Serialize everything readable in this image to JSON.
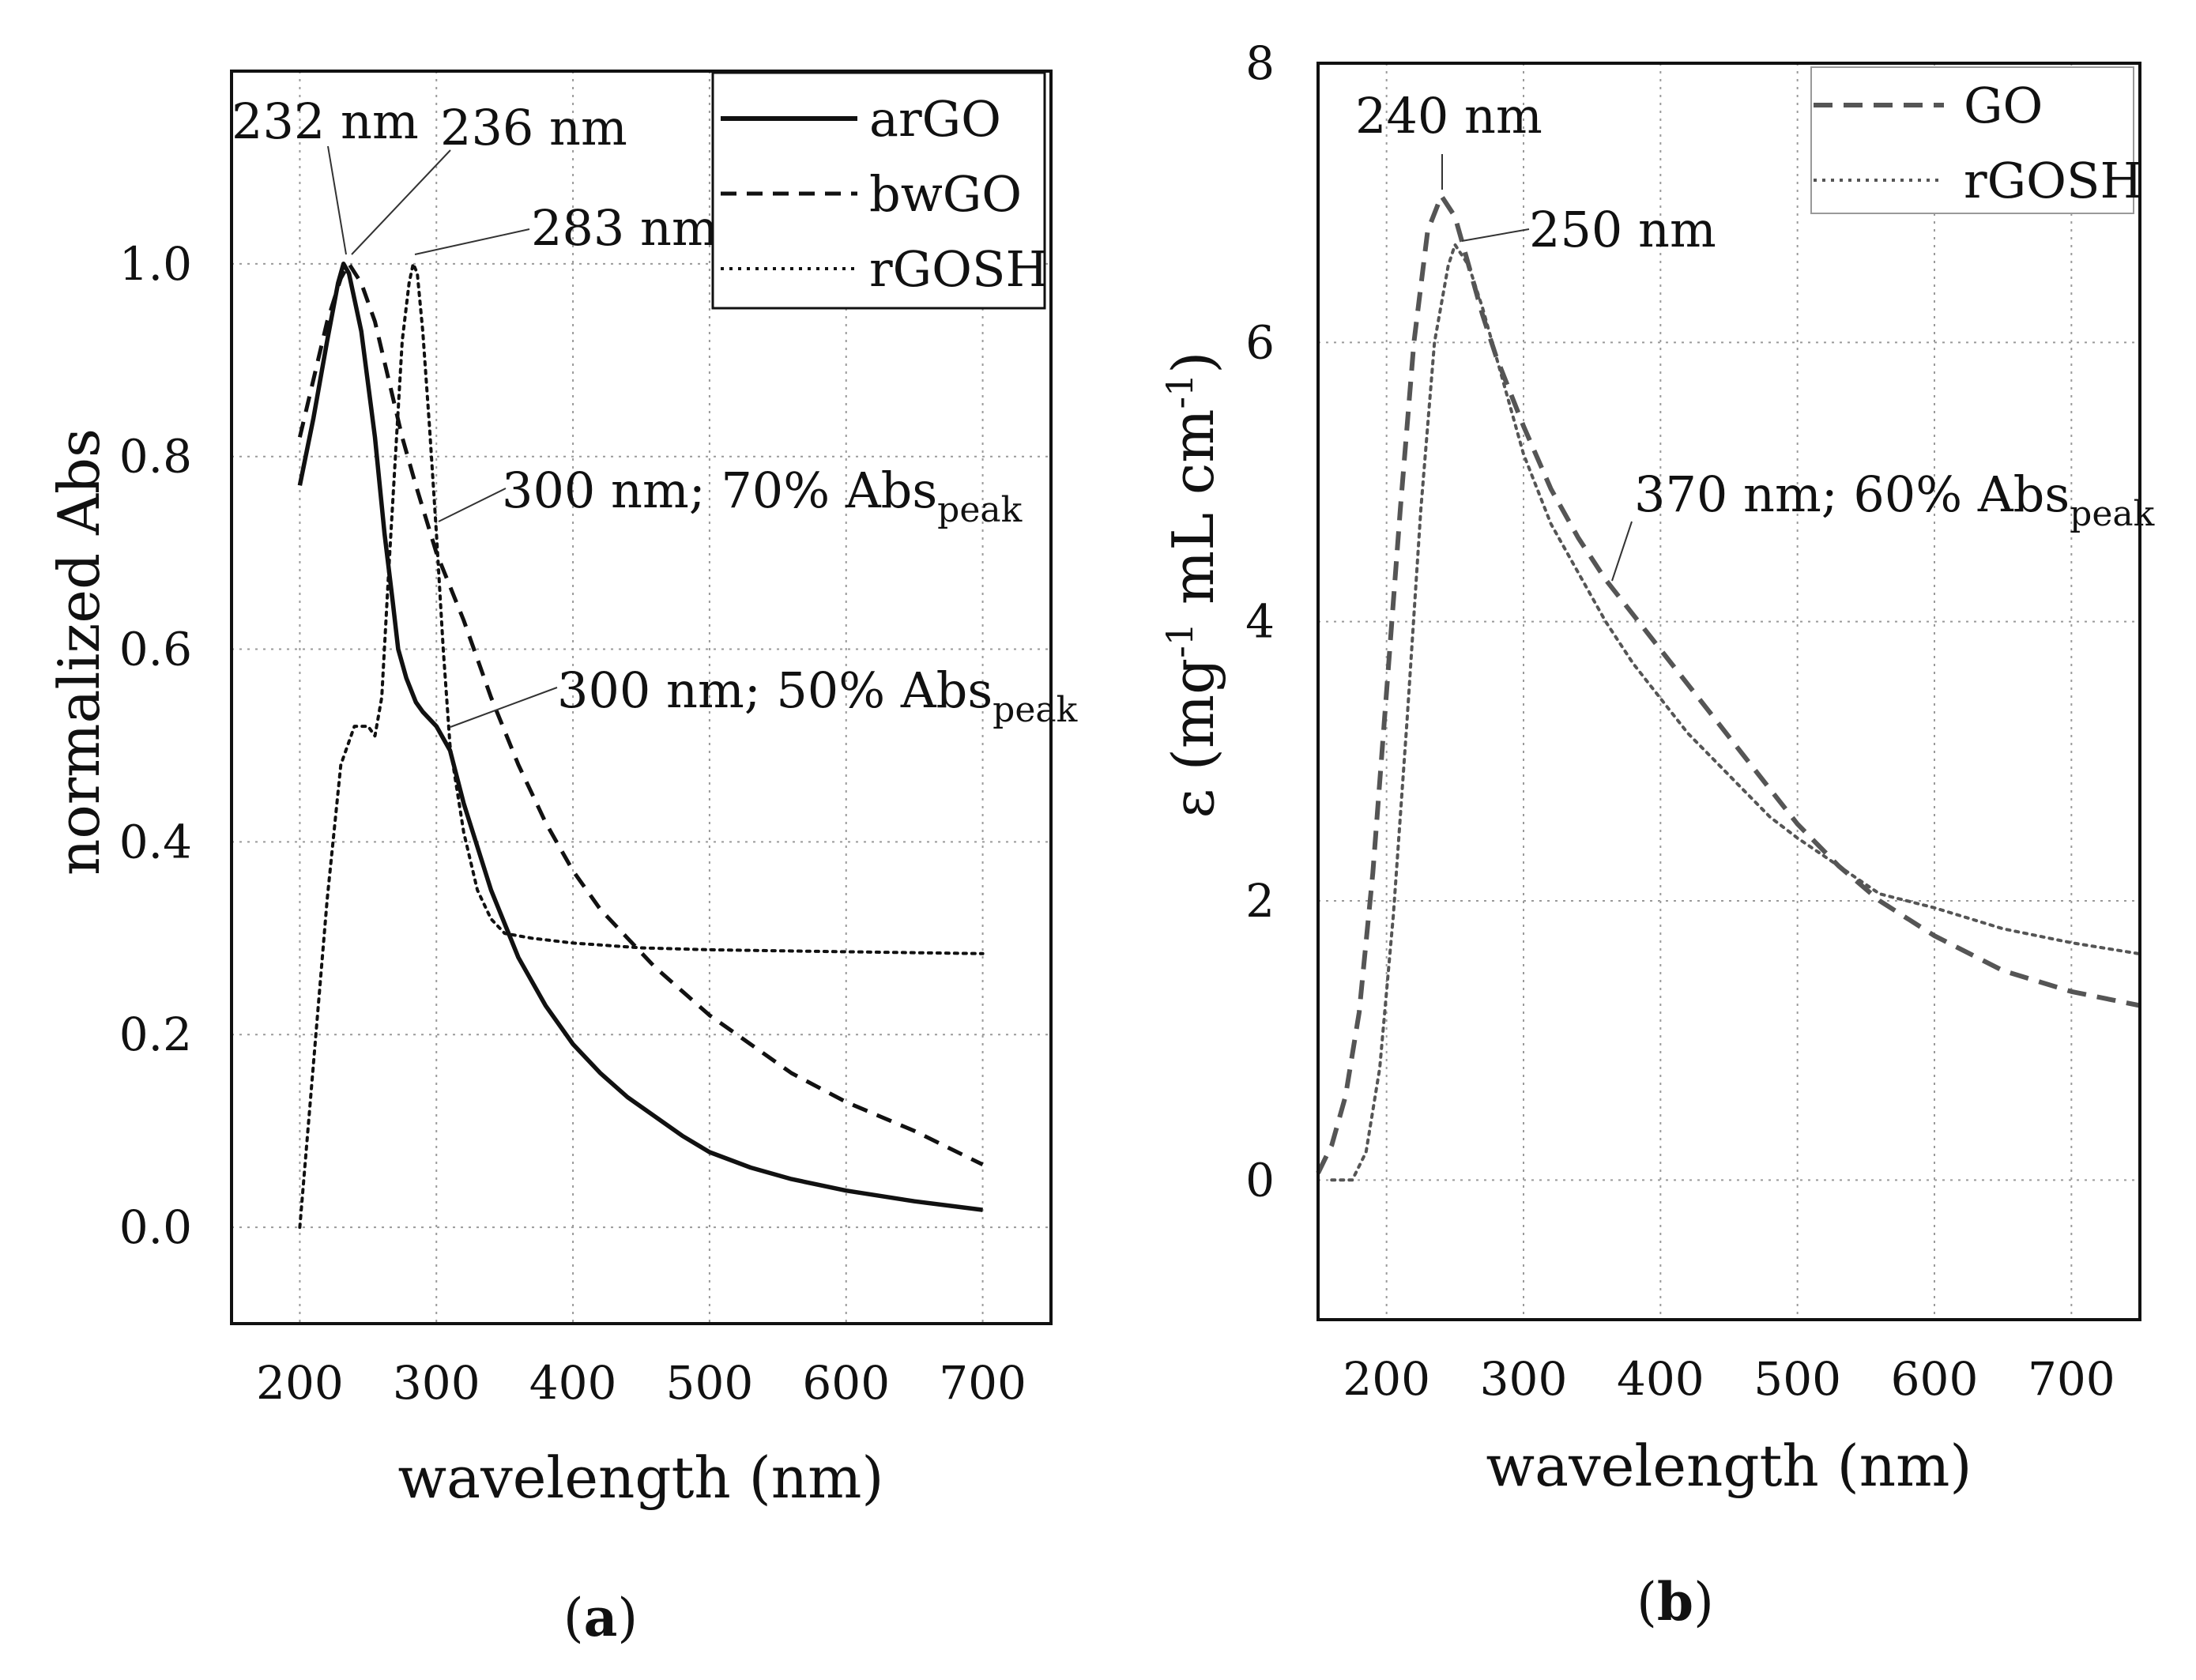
{
  "chart_data": [
    {
      "panel": "a",
      "type": "line",
      "panel_label": "a",
      "xlabel": "wavelength (nm)",
      "ylabel": "normalized Abs",
      "xlim": [
        150,
        750
      ],
      "ylim": [
        -0.1,
        1.2
      ],
      "xticks": [
        200,
        300,
        400,
        500,
        600,
        700
      ],
      "xtick_labels": [
        "200",
        "300",
        "400",
        "500",
        "600",
        "700"
      ],
      "yticks": [
        0.0,
        0.2,
        0.4,
        0.6,
        0.8,
        1.0
      ],
      "ytick_labels": [
        "0.0",
        "0.2",
        "0.4",
        "0.6",
        "0.8",
        "1.0"
      ],
      "grid": true,
      "legend_position": "top-right",
      "series": [
        {
          "name": "arGO",
          "style": "solid",
          "color": "#111111",
          "points": [
            [
              200,
              0.77
            ],
            [
              210,
              0.84
            ],
            [
              220,
              0.92
            ],
            [
              228,
              0.98
            ],
            [
              232,
              1.0
            ],
            [
              236,
              0.99
            ],
            [
              245,
              0.93
            ],
            [
              255,
              0.82
            ],
            [
              262,
              0.72
            ],
            [
              268,
              0.65
            ],
            [
              272,
              0.6
            ],
            [
              278,
              0.57
            ],
            [
              285,
              0.545
            ],
            [
              290,
              0.535
            ],
            [
              300,
              0.52
            ],
            [
              310,
              0.495
            ],
            [
              320,
              0.44
            ],
            [
              340,
              0.35
            ],
            [
              360,
              0.28
            ],
            [
              380,
              0.23
            ],
            [
              400,
              0.19
            ],
            [
              420,
              0.16
            ],
            [
              440,
              0.135
            ],
            [
              460,
              0.115
            ],
            [
              480,
              0.095
            ],
            [
              500,
              0.078
            ],
            [
              530,
              0.062
            ],
            [
              560,
              0.05
            ],
            [
              600,
              0.038
            ],
            [
              650,
              0.027
            ],
            [
              700,
              0.018
            ]
          ]
        },
        {
          "name": "bwGO",
          "style": "dashed",
          "color": "#111111",
          "points": [
            [
              200,
              0.82
            ],
            [
              210,
              0.88
            ],
            [
              220,
              0.94
            ],
            [
              230,
              0.985
            ],
            [
              236,
              1.0
            ],
            [
              245,
              0.98
            ],
            [
              255,
              0.94
            ],
            [
              265,
              0.88
            ],
            [
              275,
              0.82
            ],
            [
              285,
              0.77
            ],
            [
              300,
              0.7
            ],
            [
              320,
              0.63
            ],
            [
              340,
              0.55
            ],
            [
              360,
              0.48
            ],
            [
              380,
              0.42
            ],
            [
              400,
              0.37
            ],
            [
              420,
              0.33
            ],
            [
              440,
              0.3
            ],
            [
              460,
              0.27
            ],
            [
              480,
              0.245
            ],
            [
              500,
              0.22
            ],
            [
              530,
              0.19
            ],
            [
              560,
              0.16
            ],
            [
              600,
              0.13
            ],
            [
              650,
              0.1
            ],
            [
              700,
              0.065
            ]
          ]
        },
        {
          "name": "rGOSH",
          "style": "dotted",
          "color": "#111111",
          "points": [
            [
              200,
              0.0
            ],
            [
              210,
              0.17
            ],
            [
              220,
              0.34
            ],
            [
              230,
              0.48
            ],
            [
              240,
              0.52
            ],
            [
              250,
              0.52
            ],
            [
              255,
              0.51
            ],
            [
              260,
              0.55
            ],
            [
              265,
              0.68
            ],
            [
              270,
              0.8
            ],
            [
              275,
              0.92
            ],
            [
              280,
              0.98
            ],
            [
              283,
              1.0
            ],
            [
              286,
              0.99
            ],
            [
              290,
              0.93
            ],
            [
              295,
              0.83
            ],
            [
              300,
              0.72
            ],
            [
              305,
              0.6
            ],
            [
              310,
              0.5
            ],
            [
              320,
              0.41
            ],
            [
              330,
              0.35
            ],
            [
              340,
              0.32
            ],
            [
              350,
              0.305
            ],
            [
              370,
              0.3
            ],
            [
              400,
              0.295
            ],
            [
              450,
              0.29
            ],
            [
              500,
              0.288
            ],
            [
              550,
              0.287
            ],
            [
              600,
              0.286
            ],
            [
              650,
              0.285
            ],
            [
              700,
              0.284
            ]
          ]
        }
      ],
      "annotations": [
        {
          "label": "232 nm",
          "x": 232,
          "y": 1.0
        },
        {
          "label": "236 nm",
          "x": 236,
          "y": 1.0
        },
        {
          "label": "283 nm",
          "x": 283,
          "y": 1.0
        },
        {
          "label_main": "300 nm; 70% Abs",
          "label_sub": "peak",
          "x": 300,
          "y": 0.72
        },
        {
          "label_main": "300 nm; 50% Abs",
          "label_sub": "peak",
          "x": 310,
          "y": 0.51
        }
      ]
    },
    {
      "panel": "b",
      "type": "line",
      "panel_label": "b",
      "xlabel": "wavelength (nm)",
      "ylabel_main": "ε (mg",
      "ylabel_sup1": "-1",
      "ylabel_mid": " mL cm",
      "ylabel_sup2": "-1",
      "ylabel_end": ")",
      "xlim": [
        150,
        750
      ],
      "ylim": [
        -1,
        8
      ],
      "xticks": [
        200,
        300,
        400,
        500,
        600,
        700
      ],
      "xtick_labels": [
        "200",
        "300",
        "400",
        "500",
        "600",
        "700"
      ],
      "yticks": [
        0,
        2,
        4,
        6,
        8
      ],
      "ytick_labels": [
        "0",
        "2",
        "4",
        "6",
        "8"
      ],
      "grid": true,
      "legend_position": "top-right",
      "series": [
        {
          "name": "GO",
          "style": "dashed",
          "color": "#555555",
          "points": [
            [
              150,
              0.05
            ],
            [
              160,
              0.25
            ],
            [
              170,
              0.6
            ],
            [
              180,
              1.2
            ],
            [
              190,
              2.2
            ],
            [
              200,
              3.5
            ],
            [
              210,
              4.8
            ],
            [
              220,
              6.0
            ],
            [
              230,
              6.8
            ],
            [
              240,
              7.05
            ],
            [
              250,
              6.9
            ],
            [
              260,
              6.55
            ],
            [
              270,
              6.2
            ],
            [
              280,
              5.9
            ],
            [
              300,
              5.4
            ],
            [
              320,
              4.95
            ],
            [
              340,
              4.6
            ],
            [
              360,
              4.3
            ],
            [
              380,
              4.05
            ],
            [
              400,
              3.8
            ],
            [
              420,
              3.55
            ],
            [
              440,
              3.3
            ],
            [
              460,
              3.05
            ],
            [
              480,
              2.8
            ],
            [
              500,
              2.55
            ],
            [
              530,
              2.25
            ],
            [
              560,
              2.0
            ],
            [
              600,
              1.75
            ],
            [
              650,
              1.5
            ],
            [
              700,
              1.35
            ],
            [
              750,
              1.25
            ]
          ]
        },
        {
          "name": "rGOSH",
          "style": "dotted",
          "color": "#555555",
          "points": [
            [
              160,
              0.0
            ],
            [
              175,
              0.0
            ],
            [
              185,
              0.2
            ],
            [
              195,
              0.8
            ],
            [
              205,
              1.9
            ],
            [
              215,
              3.3
            ],
            [
              225,
              4.8
            ],
            [
              235,
              6.0
            ],
            [
              245,
              6.55
            ],
            [
              250,
              6.7
            ],
            [
              260,
              6.55
            ],
            [
              270,
              6.25
            ],
            [
              280,
              5.9
            ],
            [
              300,
              5.2
            ],
            [
              320,
              4.7
            ],
            [
              340,
              4.35
            ],
            [
              360,
              4.0
            ],
            [
              380,
              3.7
            ],
            [
              400,
              3.45
            ],
            [
              420,
              3.2
            ],
            [
              440,
              3.0
            ],
            [
              460,
              2.8
            ],
            [
              480,
              2.6
            ],
            [
              500,
              2.45
            ],
            [
              530,
              2.25
            ],
            [
              560,
              2.05
            ],
            [
              600,
              1.95
            ],
            [
              650,
              1.8
            ],
            [
              700,
              1.7
            ],
            [
              750,
              1.62
            ]
          ]
        }
      ],
      "annotations": [
        {
          "label": "240 nm",
          "x": 240,
          "y": 7.05
        },
        {
          "label": "250 nm",
          "x": 258,
          "y": 6.7
        },
        {
          "label_main": "370 nm; 60% Abs",
          "label_sub": "peak",
          "x": 370,
          "y": 4.3
        }
      ]
    }
  ]
}
